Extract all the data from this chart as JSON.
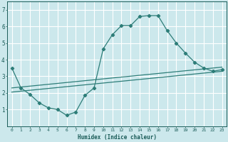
{
  "xlabel": "Humidex (Indice chaleur)",
  "bg_color": "#cce8ec",
  "grid_color": "#ffffff",
  "line_color": "#2d7d78",
  "xlim": [
    -0.5,
    23.5
  ],
  "ylim": [
    0,
    7.5
  ],
  "curve1_x": [
    0,
    1,
    2,
    3,
    4,
    5,
    6,
    7,
    8,
    9,
    10,
    11,
    12,
    13,
    14,
    15,
    16,
    17,
    18,
    19,
    20,
    21,
    22,
    23
  ],
  "curve1_y": [
    3.5,
    2.3,
    1.9,
    1.4,
    1.1,
    1.0,
    0.65,
    0.85,
    1.85,
    2.3,
    4.65,
    5.5,
    6.05,
    6.05,
    6.6,
    6.65,
    6.65,
    5.75,
    5.0,
    4.4,
    3.85,
    3.5,
    3.3,
    3.4
  ],
  "line1_x": [
    0,
    23
  ],
  "line1_y": [
    2.3,
    3.55
  ],
  "line2_x": [
    0,
    23
  ],
  "line2_y": [
    2.05,
    3.3
  ],
  "xtick_vals": [
    0,
    1,
    2,
    3,
    4,
    5,
    6,
    7,
    8,
    9,
    10,
    11,
    12,
    13,
    14,
    15,
    16,
    17,
    18,
    19,
    20,
    21,
    22,
    23
  ],
  "xtick_labels": [
    "0",
    "1",
    "2",
    "3",
    "4",
    "5",
    "6",
    "7",
    "8",
    "9",
    "10",
    "11",
    "12",
    "13",
    "14",
    "15",
    "16",
    "17",
    "18",
    "19",
    "20",
    "21",
    "22",
    "23"
  ],
  "ytick_vals": [
    1,
    2,
    3,
    4,
    5,
    6,
    7
  ],
  "ytick_labels": [
    "1",
    "2",
    "3",
    "4",
    "5",
    "6",
    "7"
  ]
}
